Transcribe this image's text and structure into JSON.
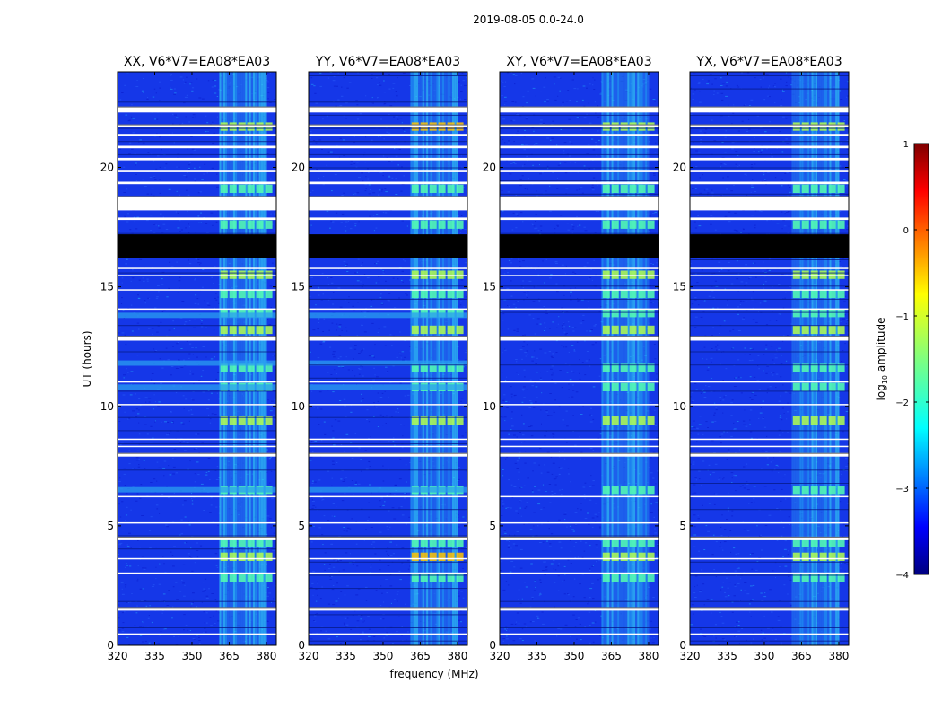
{
  "chart_data": {
    "type": "heatmap",
    "suptitle": "2019-08-05 0.0-24.0",
    "panels": [
      {
        "title": "XX, V6*V7=EA08*EA03",
        "polarization": "XX"
      },
      {
        "title": "YY, V6*V7=EA08*EA03",
        "polarization": "YY"
      },
      {
        "title": "XY, V6*V7=EA08*EA03",
        "polarization": "XY"
      },
      {
        "title": "YX, V6*V7=EA08*EA03",
        "polarization": "YX"
      }
    ],
    "xlabel": "frequency (MHz)",
    "ylabel": "UT (hours)",
    "xlim": [
      320,
      384
    ],
    "ylim": [
      0,
      24
    ],
    "xticks": [
      320,
      335,
      350,
      365,
      380
    ],
    "yticks": [
      0,
      5,
      10,
      15,
      20
    ],
    "colorbar": {
      "label": "log10 amplitude",
      "range": [
        -4,
        1
      ],
      "ticks": [
        1,
        0,
        -1,
        -2,
        -3,
        -4
      ],
      "tick_labels": [
        "1",
        "0",
        "−1",
        "−2",
        "−3",
        "−4"
      ],
      "colormap": "jet"
    },
    "rfi_band_mhz": [
      361,
      380
    ],
    "flagged_hours_black": [
      [
        16.2,
        17.2
      ]
    ],
    "gap_hours_white": [
      [
        18.2,
        18.8
      ],
      [
        17.8,
        17.9
      ],
      [
        12.75,
        12.95
      ],
      [
        7.9,
        8.05
      ],
      [
        4.4,
        4.55
      ],
      [
        1.45,
        1.6
      ],
      [
        19.3,
        19.4
      ],
      [
        19.8,
        19.9
      ],
      [
        20.3,
        20.4
      ],
      [
        20.8,
        20.9
      ],
      [
        21.3,
        21.4
      ],
      [
        21.7,
        21.8
      ],
      [
        22.3,
        22.55
      ],
      [
        15.75,
        15.8
      ],
      [
        15.45,
        15.5
      ],
      [
        14.85,
        14.9
      ],
      [
        14.05,
        14.1
      ],
      [
        11.0,
        11.05
      ],
      [
        10.05,
        10.1
      ],
      [
        8.6,
        8.65
      ],
      [
        8.3,
        8.35
      ],
      [
        6.2,
        6.25
      ],
      [
        5.1,
        5.15
      ],
      [
        3.6,
        3.65
      ],
      [
        3.0,
        3.05
      ],
      [
        0.45,
        0.5
      ]
    ]
  }
}
